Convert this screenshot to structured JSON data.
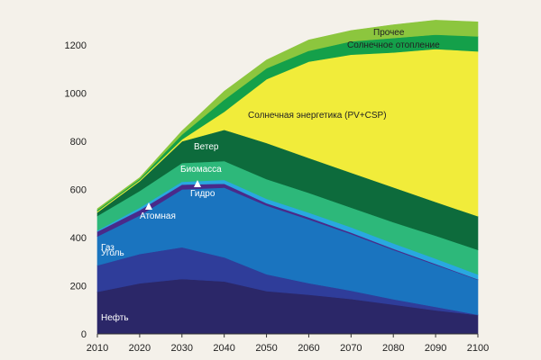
{
  "chart_data": {
    "type": "area",
    "stacked": true,
    "title": "",
    "xlabel": "",
    "ylabel": "",
    "x": [
      2010,
      2020,
      2030,
      2040,
      2050,
      2060,
      2070,
      2080,
      2090,
      2100
    ],
    "xlim": [
      2010,
      2100
    ],
    "ylim": [
      0,
      1300
    ],
    "y_ticks": [
      0,
      200,
      400,
      600,
      800,
      1000,
      1200
    ],
    "x_ticks": [
      2010,
      2020,
      2030,
      2040,
      2050,
      2060,
      2070,
      2080,
      2090,
      2100
    ],
    "grid": false,
    "legend": "inline labels",
    "series": [
      {
        "name": "Нефть",
        "color": "#2b2768",
        "label_color": "#ffffff",
        "values": [
          175,
          210,
          228,
          218,
          178,
          163,
          145,
          122,
          98,
          78
        ]
      },
      {
        "name": "Уголь",
        "color": "#2f3d9a",
        "label_color": "#ffffff",
        "values": [
          110,
          122,
          132,
          100,
          70,
          48,
          35,
          22,
          14,
          2
        ]
      },
      {
        "name": "Газ",
        "color": "#1a74bf",
        "label_color": "#ffffff",
        "values": [
          120,
          160,
          240,
          290,
          285,
          265,
          235,
          205,
          175,
          145
        ]
      },
      {
        "name": "Атомная",
        "color": "#4a2a8a",
        "label_color": "#ffffff",
        "values": [
          20,
          22,
          20,
          16,
          10,
          8,
          6,
          5,
          4,
          2
        ]
      },
      {
        "name": "Гидро",
        "color": "#29a8e0",
        "label_color": "#ffffff",
        "values": [
          5,
          10,
          12,
          16,
          18,
          20,
          22,
          22,
          22,
          20
        ]
      },
      {
        "name": "Биомасса",
        "color": "#2db87a",
        "label_color": "#ffffff",
        "values": [
          60,
          70,
          78,
          78,
          82,
          82,
          82,
          88,
          95,
          102
        ]
      },
      {
        "name": "Ветер",
        "color": "#0d6b3c",
        "label_color": "#ffffff",
        "values": [
          15,
          40,
          90,
          130,
          150,
          145,
          145,
          145,
          140,
          140
        ]
      },
      {
        "name": "Солнечная энергетика (PV+CSP)",
        "color": "#f1ec3a",
        "label_color": "#222222",
        "values": [
          5,
          5,
          8,
          75,
          265,
          400,
          490,
          560,
          635,
          685
        ]
      },
      {
        "name": "Солнечное отопление",
        "color": "#14a04a",
        "label_color": "#222222",
        "values": [
          5,
          5,
          20,
          50,
          45,
          45,
          55,
          60,
          60,
          62
        ]
      },
      {
        "name": "Прочее",
        "color": "#8cc63e",
        "label_color": "#222222",
        "values": [
          5,
          5,
          15,
          35,
          35,
          45,
          45,
          55,
          60,
          60
        ]
      }
    ]
  }
}
